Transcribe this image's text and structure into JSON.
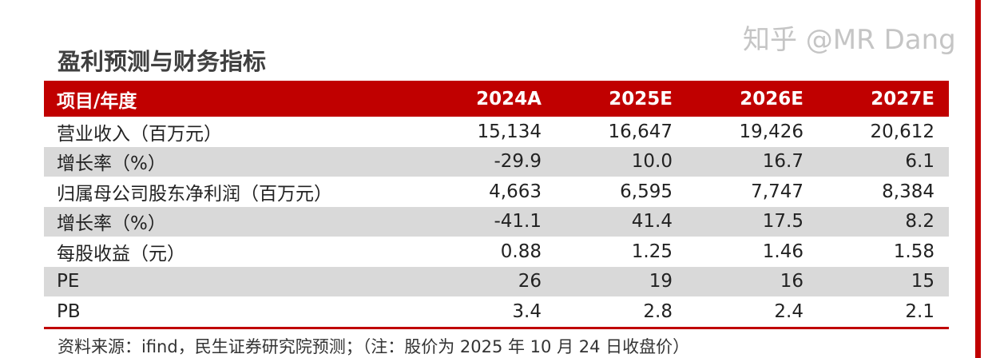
{
  "title": "盈利预测与财务指标",
  "table": {
    "headers": [
      "项目/年度",
      "2024A",
      "2025E",
      "2026E",
      "2027E"
    ],
    "rows": [
      [
        "营业收入（百万元）",
        "15,134",
        "16,647",
        "19,426",
        "20,612"
      ],
      [
        "增长率（%）",
        "-29.9",
        "10.0",
        "16.7",
        "6.1"
      ],
      [
        "归属母公司股东净利润（百万元）",
        "4,663",
        "6,595",
        "7,747",
        "8,384"
      ],
      [
        "增长率（%）",
        "-41.1",
        "41.4",
        "17.5",
        "8.2"
      ],
      [
        "每股收益（元）",
        "0.88",
        "1.25",
        "1.46",
        "1.58"
      ],
      [
        "PE",
        "26",
        "19",
        "16",
        "15"
      ],
      [
        "PB",
        "3.4",
        "2.8",
        "2.4",
        "2.1"
      ]
    ]
  },
  "note": "资料来源：ifind，民生证券研究院预测；（注：股价为 2025 年 10 月 24 日收盘价）",
  "watermark": "知乎 @MR Dang",
  "colors": {
    "accent": "#c00000",
    "stripe": "#d9d9d9"
  }
}
